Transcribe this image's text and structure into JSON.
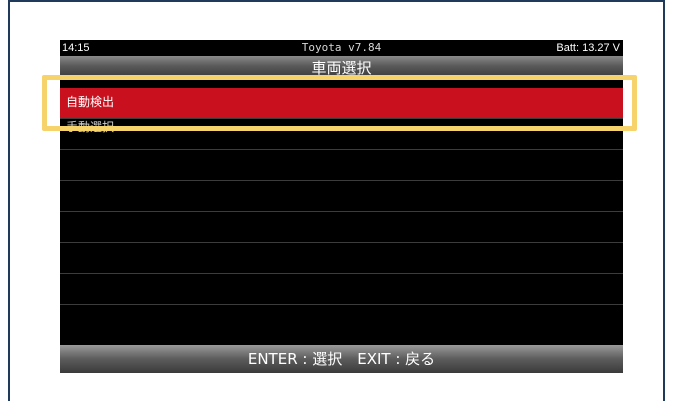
{
  "status_bar": {
    "time": "14:15",
    "app_version": "Toyota v7.84",
    "battery": "Batt: 13.27 V"
  },
  "title_bar": {
    "title": "車両選択"
  },
  "menu": {
    "items": [
      {
        "label": "自動検出",
        "selected": true
      },
      {
        "label": "手動選択",
        "selected": false
      },
      {
        "label": "",
        "selected": false
      },
      {
        "label": "",
        "selected": false
      },
      {
        "label": "",
        "selected": false
      },
      {
        "label": "",
        "selected": false
      },
      {
        "label": "",
        "selected": false
      },
      {
        "label": "",
        "selected": false
      }
    ]
  },
  "footer": {
    "hint": "ENTER : 選択　EXIT : 戻る"
  },
  "colors": {
    "selection": "#c8101e",
    "highlight_outline": "#f6d36b",
    "frame_border": "#1f3a5a"
  }
}
